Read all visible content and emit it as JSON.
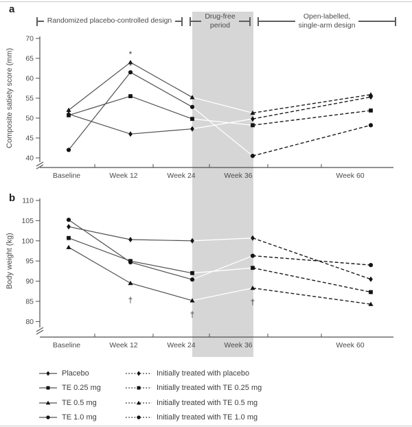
{
  "panels": {
    "a": "a",
    "b": "b"
  },
  "phases": {
    "phase1": "Randomized placebo-controlled design",
    "phase2": "Drug-free\nperiod",
    "phase3": "Open-labelled,\nsingle-arm design"
  },
  "colors": {
    "solid_line": "#4f4f4f",
    "dashed_line": "#1a1a1a",
    "drug_free_band": "#d6d6d6",
    "white_band_line": "#ffffff",
    "marker": "#141414",
    "axis_text": "#4a4a4a"
  },
  "chart_data": [
    {
      "type": "line",
      "panel": "a",
      "ylabel": "Composite satiety score (mm)",
      "ylim": [
        40,
        70
      ],
      "yticks": [
        40,
        45,
        50,
        55,
        60,
        65,
        70
      ],
      "x_label_categories": [
        "Baseline",
        "Week 12",
        "Week 24",
        "Week 36",
        "Week 60"
      ],
      "x_weeks": [
        0,
        12,
        24,
        36,
        60
      ],
      "line_styles": {
        "weeks_0_24": "solid",
        "weeks_24_36": "white",
        "weeks_36_60": "dashed"
      },
      "series": [
        {
          "name": "Placebo",
          "marker": "diamond",
          "values": [
            51,
            46,
            47.3,
            49.8,
            55.3
          ]
        },
        {
          "name": "TE 0.25 mg",
          "marker": "square",
          "values": [
            50.7,
            55.5,
            49.8,
            48.2,
            51.9
          ]
        },
        {
          "name": "TE 0.5 mg",
          "marker": "triangle",
          "values": [
            52,
            64,
            55.2,
            51.3,
            55.9
          ]
        },
        {
          "name": "TE 1.0 mg",
          "marker": "circle",
          "values": [
            42,
            61.5,
            52.8,
            40.5,
            48.2
          ]
        }
      ],
      "annotations": [
        {
          "week": 12,
          "value": 65.9,
          "text": "*"
        },
        {
          "week": 12,
          "value": 62.9,
          "text": "*"
        }
      ]
    },
    {
      "type": "line",
      "panel": "b",
      "ylabel": "Body weight (kg)",
      "ylim": [
        80,
        110
      ],
      "yticks": [
        80,
        85,
        90,
        95,
        100,
        105,
        110
      ],
      "x_label_categories": [
        "Baseline",
        "Week 12",
        "Week 24",
        "Week 36",
        "Week 60"
      ],
      "x_weeks": [
        0,
        12,
        24,
        36,
        60
      ],
      "line_styles": {
        "weeks_0_24": "solid",
        "weeks_24_36": "white",
        "weeks_36_60": "dashed"
      },
      "series": [
        {
          "name": "Placebo",
          "marker": "diamond",
          "values": [
            103.5,
            100.3,
            100,
            100.7,
            90.5
          ]
        },
        {
          "name": "TE 0.25 mg",
          "marker": "square",
          "values": [
            100.7,
            95,
            92,
            93.3,
            87.3
          ]
        },
        {
          "name": "TE 0.5 mg",
          "marker": "triangle",
          "values": [
            98.4,
            89.5,
            85.2,
            88.3,
            84.3
          ]
        },
        {
          "name": "TE 1.0 mg",
          "marker": "circle",
          "values": [
            105.2,
            94.7,
            90.4,
            96.3,
            94
          ]
        }
      ],
      "annotations": [
        {
          "week": 12,
          "value": 85.2,
          "text": "†"
        },
        {
          "week": 24,
          "value": 81.6,
          "text": "†"
        },
        {
          "week": 36,
          "value": 84.7,
          "text": "†"
        }
      ]
    }
  ],
  "legend": {
    "randomized": [
      {
        "label": "Placebo",
        "marker": "diamond"
      },
      {
        "label": "TE 0.25 mg",
        "marker": "square"
      },
      {
        "label": "TE 0.5 mg",
        "marker": "triangle"
      },
      {
        "label": "TE 1.0 mg",
        "marker": "circle"
      }
    ],
    "open_label": [
      {
        "label": "Initially treated with placebo",
        "marker": "diamond"
      },
      {
        "label": "Initially treated with TE 0.25 mg",
        "marker": "square"
      },
      {
        "label": "Initially treated with TE 0.5 mg",
        "marker": "triangle"
      },
      {
        "label": "Initially treated with TE 1.0 mg",
        "marker": "circle"
      }
    ]
  }
}
